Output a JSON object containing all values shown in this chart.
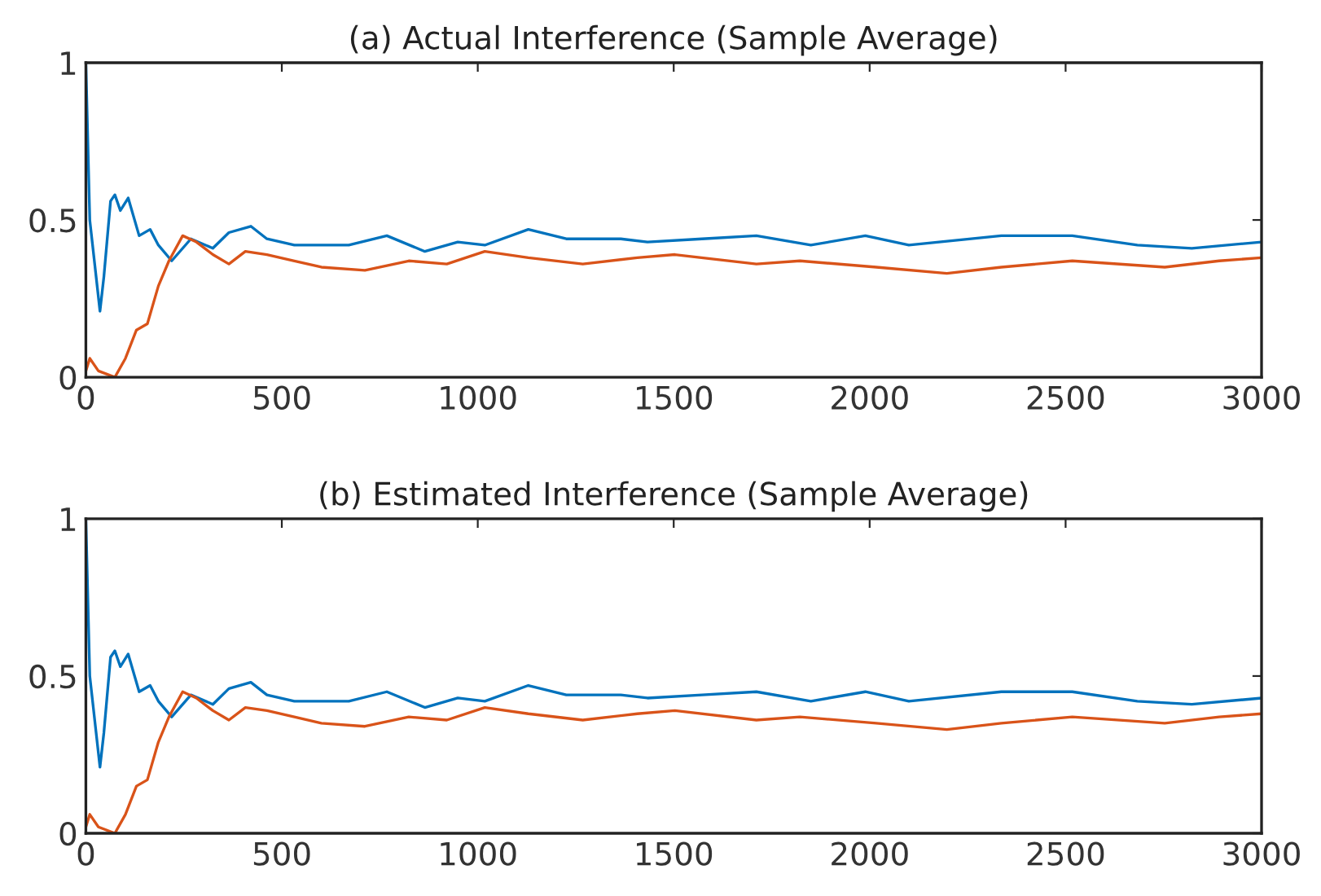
{
  "chart_data": [
    {
      "type": "line",
      "title": "(a) Actual Interference (Sample Average)",
      "xlim": [
        0,
        3000
      ],
      "xticks": [
        0,
        500,
        1000,
        1500,
        2000,
        2500,
        3000
      ],
      "ylim": [
        0,
        1
      ],
      "yticks": [
        0,
        0.5,
        1
      ],
      "line_style": "solid",
      "series": [
        {
          "color": "#0072bd",
          "x": [
            0,
            10,
            36,
            46,
            63,
            74,
            88,
            108,
            136,
            164,
            185,
            219,
            268,
            324,
            365,
            421,
            462,
            532,
            601,
            671,
            768,
            865,
            949,
            1018,
            1129,
            1226,
            1365,
            1433,
            1572,
            1711,
            1850,
            1989,
            2100,
            2336,
            2517,
            2683,
            2822,
            3000
          ],
          "values": [
            1.0,
            0.5,
            0.21,
            0.32,
            0.56,
            0.58,
            0.53,
            0.57,
            0.45,
            0.47,
            0.42,
            0.37,
            0.44,
            0.41,
            0.46,
            0.48,
            0.44,
            0.42,
            0.42,
            0.42,
            0.45,
            0.4,
            0.43,
            0.42,
            0.47,
            0.44,
            0.44,
            0.43,
            0.44,
            0.45,
            0.42,
            0.45,
            0.42,
            0.45,
            0.45,
            0.42,
            0.41,
            0.43
          ]
        },
        {
          "color": "#d95319",
          "x": [
            0,
            10,
            32,
            74,
            101,
            129,
            157,
            185,
            212,
            247,
            282,
            324,
            365,
            407,
            462,
            532,
            601,
            712,
            824,
            921,
            1018,
            1129,
            1268,
            1407,
            1503,
            1711,
            1822,
            2017,
            2197,
            2336,
            2517,
            2753,
            2892,
            3000
          ],
          "values": [
            0.02,
            0.06,
            0.02,
            0.0,
            0.06,
            0.15,
            0.17,
            0.29,
            0.37,
            0.45,
            0.43,
            0.39,
            0.36,
            0.4,
            0.39,
            0.37,
            0.35,
            0.34,
            0.37,
            0.36,
            0.4,
            0.38,
            0.36,
            0.38,
            0.39,
            0.36,
            0.37,
            0.35,
            0.33,
            0.35,
            0.37,
            0.35,
            0.37,
            0.38
          ]
        }
      ]
    },
    {
      "type": "line",
      "title": "(b) Estimated Interference (Sample Average)",
      "xlim": [
        0,
        3000
      ],
      "xticks": [
        0,
        500,
        1000,
        1500,
        2000,
        2500,
        3000
      ],
      "ylim": [
        0,
        1
      ],
      "yticks": [
        0,
        0.5,
        1
      ],
      "line_style": "solid",
      "series": [
        {
          "color": "#0072bd",
          "x": [
            0,
            10,
            36,
            46,
            63,
            74,
            88,
            108,
            136,
            164,
            185,
            219,
            268,
            324,
            365,
            421,
            462,
            532,
            601,
            671,
            768,
            865,
            949,
            1018,
            1129,
            1226,
            1365,
            1433,
            1572,
            1711,
            1850,
            1989,
            2100,
            2336,
            2517,
            2683,
            2822,
            3000
          ],
          "values": [
            1.0,
            0.5,
            0.21,
            0.32,
            0.56,
            0.58,
            0.53,
            0.57,
            0.45,
            0.47,
            0.42,
            0.37,
            0.44,
            0.41,
            0.46,
            0.48,
            0.44,
            0.42,
            0.42,
            0.42,
            0.45,
            0.4,
            0.43,
            0.42,
            0.47,
            0.44,
            0.44,
            0.43,
            0.44,
            0.45,
            0.42,
            0.45,
            0.42,
            0.45,
            0.45,
            0.42,
            0.41,
            0.43
          ]
        },
        {
          "color": "#d95319",
          "x": [
            0,
            10,
            32,
            74,
            101,
            129,
            157,
            185,
            212,
            247,
            282,
            324,
            365,
            407,
            462,
            532,
            601,
            712,
            824,
            921,
            1018,
            1129,
            1268,
            1407,
            1503,
            1711,
            1822,
            2017,
            2197,
            2336,
            2517,
            2753,
            2892,
            3000
          ],
          "values": [
            0.02,
            0.06,
            0.02,
            0.0,
            0.06,
            0.15,
            0.17,
            0.29,
            0.37,
            0.45,
            0.43,
            0.39,
            0.36,
            0.4,
            0.39,
            0.37,
            0.35,
            0.34,
            0.37,
            0.36,
            0.4,
            0.38,
            0.36,
            0.38,
            0.39,
            0.36,
            0.37,
            0.35,
            0.33,
            0.35,
            0.37,
            0.35,
            0.37,
            0.38
          ]
        }
      ]
    }
  ]
}
